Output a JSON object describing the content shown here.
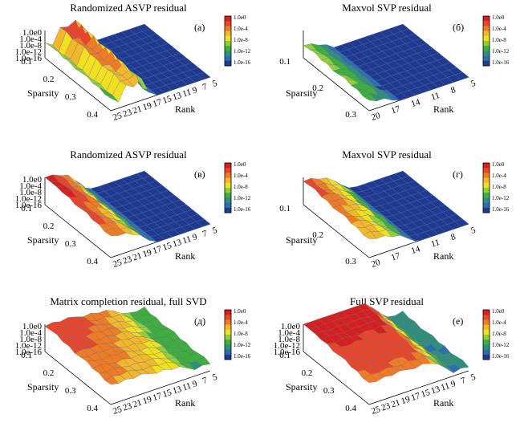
{
  "figure": {
    "colorbar_colors": [
      "#1f3a93",
      "#2a6fb0",
      "#2f8f7a",
      "#3fae3f",
      "#8fcf3a",
      "#f0e020",
      "#f3b72b",
      "#ef7b25",
      "#e8462a",
      "#d61f1f"
    ]
  },
  "chart_data": [
    {
      "type": "surface",
      "panel": "(а)",
      "title": "Randomized ASVP residual",
      "zticks": [
        "1.0e0",
        "1.0e-4",
        "1.0e-8",
        "1.0e-12",
        "1.0e-16"
      ],
      "colorbar_labels": [
        "1.0e0",
        "1.0e-4",
        "1.0e-8",
        "1.0e-12",
        "1.0e-16"
      ],
      "xlabel": "Sparsity",
      "ylabel": "Rank",
      "sparsity_ticks": [
        "0.1",
        "0.2",
        "0.3",
        "0.4"
      ],
      "rank_ticks": [
        "25",
        "23",
        "21",
        "19",
        "17",
        "15",
        "13",
        "11",
        "9",
        "7",
        "5"
      ],
      "zlog": true,
      "surface_profile": [
        0.55,
        0.3,
        0.9,
        0.75,
        0.95,
        0.2,
        0.02,
        0.0,
        0.0,
        0.0,
        0.0,
        0.0
      ],
      "description_of_surface": "low plateau near 1e-16 everywhere except spikes near small sparsity and high rank"
    },
    {
      "type": "surface",
      "panel": "(б)",
      "title": "Maxvol SVP residual",
      "zticks": [],
      "colorbar_labels": [
        "1.0e0",
        "1.0e-4",
        "1.0e-8",
        "1.0e-12",
        "1.0e-16"
      ],
      "xlabel": "Sparsity",
      "ylabel": "Rank",
      "sparsity_ticks": [
        "0.1",
        "0.2",
        "0.3"
      ],
      "rank_ticks": [
        "20",
        "17",
        "14",
        "11",
        "8",
        "5"
      ],
      "zlog": true,
      "surface_profile": [
        0.45,
        0.35,
        0.25,
        0.1,
        0.0,
        0.0,
        0.0,
        0.0,
        0.0,
        0.0,
        0.0,
        0.0
      ]
    },
    {
      "type": "surface",
      "panel": "(в)",
      "title": "Randomized ASVP residual",
      "zticks": [
        "1.0e0",
        "1.0e-4",
        "1.0e-8",
        "1.0e-12",
        "1.0e-16"
      ],
      "colorbar_labels": [
        "1.0e0",
        "1.0e-4",
        "1.0e-8",
        "1.0e-12",
        "1.0e-16"
      ],
      "xlabel": "Sparsity",
      "ylabel": "Rank",
      "sparsity_ticks": [
        "0.1",
        "0.2",
        "0.3",
        "0.4"
      ],
      "rank_ticks": [
        "25",
        "23",
        "21",
        "19",
        "17",
        "15",
        "13",
        "11",
        "9",
        "7",
        "5"
      ],
      "zlog": true,
      "surface_profile": [
        1.0,
        0.95,
        0.85,
        0.7,
        0.45,
        0.15,
        0.02,
        0.0,
        0.0,
        0.0,
        0.0,
        0.0
      ]
    },
    {
      "type": "surface",
      "panel": "(г)",
      "title": "Maxvol SVP residual",
      "zticks": [],
      "colorbar_labels": [
        "1.0e0",
        "1.0e-4",
        "1.0e-8",
        "1.0e-12",
        "1.0e-16"
      ],
      "xlabel": "Sparsity",
      "ylabel": "Rank",
      "sparsity_ticks": [
        "0.1",
        "0.2",
        "0.3"
      ],
      "rank_ticks": [
        "20",
        "17",
        "14",
        "11",
        "8",
        "5"
      ],
      "zlog": true,
      "surface_profile": [
        0.85,
        0.8,
        0.72,
        0.6,
        0.45,
        0.25,
        0.05,
        0.0,
        0.0,
        0.0,
        0.0,
        0.0
      ]
    },
    {
      "type": "surface",
      "panel": "(д)",
      "title": "Matrix completion residual, full SVD",
      "zticks": [
        "1.0e0",
        "1.0e-4",
        "1.0e-8",
        "1.0e-12",
        "1.0e-16"
      ],
      "colorbar_labels": [
        "1.0e0",
        "1.0e-4",
        "1.0e-8",
        "1.0e-12",
        "1.0e-16"
      ],
      "xlabel": "Sparsity",
      "ylabel": "Rank",
      "sparsity_ticks": [
        "0.1",
        "0.2",
        "0.3",
        "0.4"
      ],
      "rank_ticks": [
        "25",
        "23",
        "21",
        "19",
        "17",
        "15",
        "13",
        "11",
        "9",
        "7",
        "5"
      ],
      "zlog": true,
      "surface_profile": [
        0.92,
        0.9,
        0.88,
        0.86,
        0.84,
        0.8,
        0.76,
        0.72,
        0.66,
        0.58,
        0.45,
        0.3
      ]
    },
    {
      "type": "surface",
      "panel": "(е)",
      "title": "Full SVP residual",
      "zticks": [
        "1.0e0",
        "1.0e-4",
        "1.0e-8",
        "1.0e-12",
        "1.0e-16"
      ],
      "colorbar_labels": [
        "1.0e0",
        "1.0e-4",
        "1.0e-8",
        "1.0e-12",
        "1.0e-16"
      ],
      "xlabel": "Sparsity",
      "ylabel": "Rank",
      "sparsity_ticks": [
        "0.1",
        "0.2",
        "0.3",
        "0.4"
      ],
      "rank_ticks": [
        "25",
        "23",
        "21",
        "19",
        "17",
        "15",
        "13",
        "11",
        "9",
        "7",
        "5"
      ],
      "zlog": true,
      "surface_profile": [
        1.0,
        1.0,
        1.0,
        1.0,
        1.0,
        1.0,
        1.0,
        1.0,
        0.95,
        0.7,
        0.45,
        0.15
      ]
    }
  ]
}
